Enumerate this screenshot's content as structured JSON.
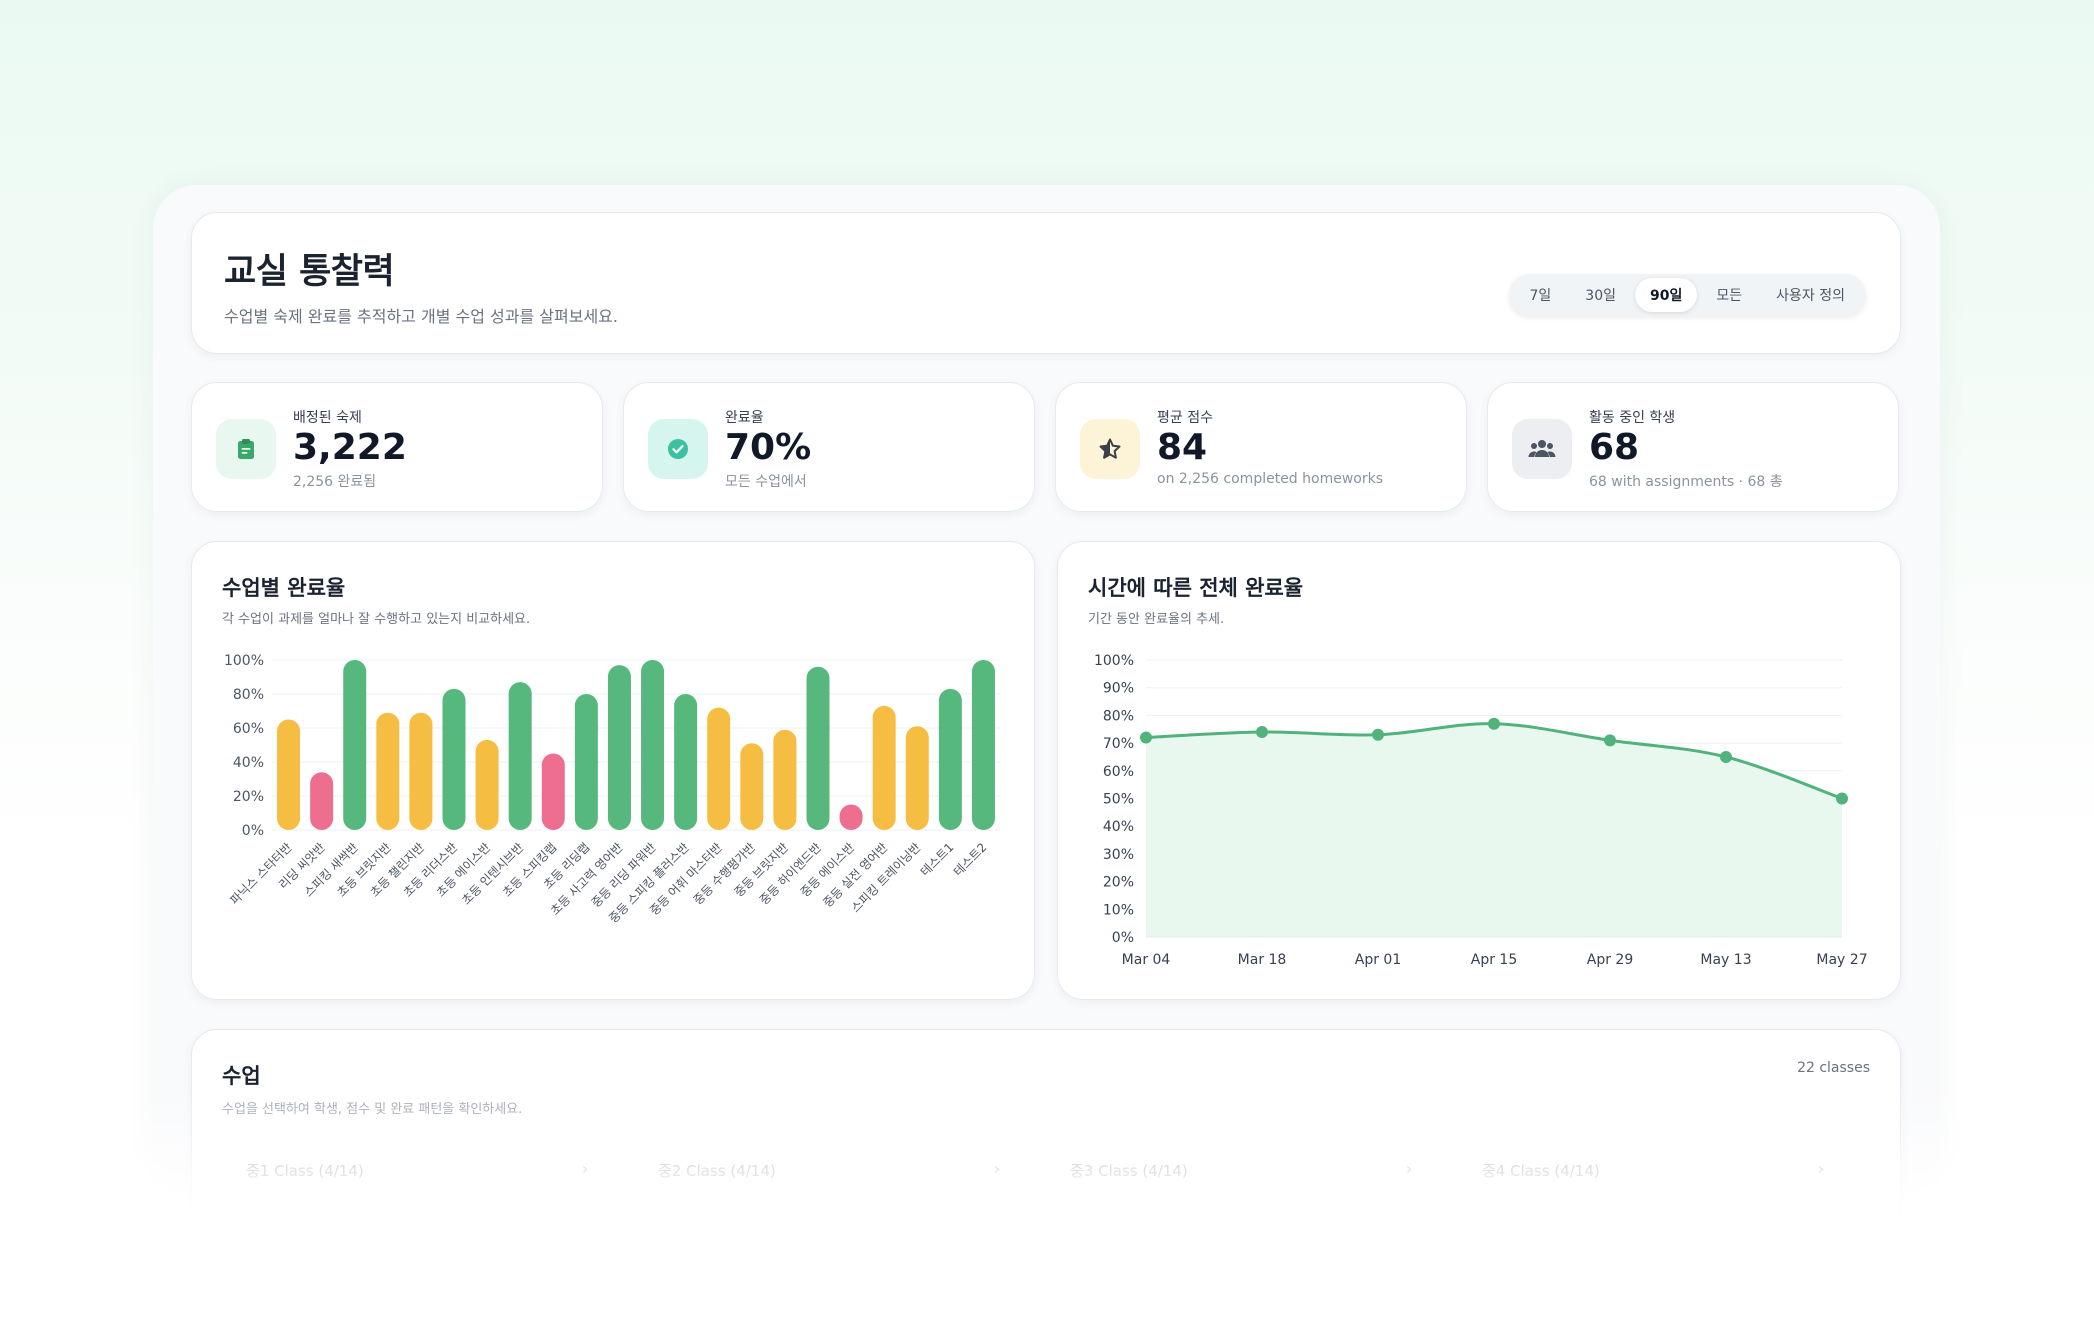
{
  "header": {
    "title": "교실 통찰력",
    "subtitle": "수업별 숙제 완료를 추적하고 개별 수업 성과를 살펴보세요.",
    "ranges": [
      "7일",
      "30일",
      "90일",
      "모든",
      "사용자 정의"
    ],
    "active_range": "90일"
  },
  "stats": [
    {
      "label": "배정된 숙제",
      "value": "3,222",
      "sub": "2,256 완료됨",
      "icon": "clipboard-icon",
      "color": "#e8f7ef"
    },
    {
      "label": "완료율",
      "value": "70%",
      "sub": "모든 수업에서",
      "icon": "check-circle-icon",
      "color": "#d6f5ef"
    },
    {
      "label": "평균 점수",
      "value": "84",
      "sub": "on 2,256 completed homeworks",
      "icon": "star-icon",
      "color": "#fdf3d6"
    },
    {
      "label": "활동 중인 학생",
      "value": "68",
      "sub": "68 with assignments · 68 총",
      "icon": "users-icon",
      "color": "#eceef2"
    }
  ],
  "bar_panel": {
    "title": "수업별 완료율",
    "subtitle": "각 수업이 과제를 얼마나 잘 수행하고 있는지 비교하세요."
  },
  "line_panel": {
    "title": "시간에 따른 전체 완료율",
    "subtitle": "기간 동안 완료율의 추세."
  },
  "classes": {
    "title": "수업",
    "subtitle": "수업을 선택하여 학생, 점수 및 완료 패턴을 확인하세요.",
    "count": "22 classes",
    "items": [
      "중1 Class (4/14)",
      "중2 Class (4/14)",
      "중3 Class (4/14)",
      "중4 Class (4/14)"
    ]
  },
  "colors": {
    "green": "#57b87d",
    "yellow": "#f5bd41",
    "pink": "#ee6e8f",
    "line": "#52b27b",
    "area": "#e8f8ef"
  },
  "chart_data": [
    {
      "type": "bar",
      "categories": [
        "파닉스 스타터반",
        "리딩 씨앗반",
        "스피킹 새싹반",
        "초등 브릿지반",
        "초등 챌린지반",
        "초등 리더스반",
        "초등 에이스반",
        "초등 인텐시브반",
        "초등 스피킹랩",
        "초등 리딩랩",
        "초등 사고력 영어반",
        "중등 리딩 파워반",
        "중등 스피킹 플러스반",
        "중등 어휘 마스터반",
        "중등 수행평가반",
        "중등 브릿지반",
        "중등 하이엔드반",
        "중등 에이스반",
        "중등 실전 영어반",
        "스피킹 트레이닝반",
        "테스트1",
        "테스트2"
      ],
      "values": [
        65,
        34,
        100,
        69,
        69,
        83,
        53,
        87,
        45,
        80,
        97,
        100,
        80,
        72,
        51,
        59,
        96,
        15,
        73,
        61,
        83,
        100
      ],
      "yticks": [
        "0%",
        "20%",
        "40%",
        "60%",
        "80%",
        "100%"
      ],
      "ylim": [
        0,
        100
      ]
    },
    {
      "type": "area",
      "x": [
        "Mar 04",
        "Mar 18",
        "Apr 01",
        "Apr 15",
        "Apr 29",
        "May 13",
        "May 27"
      ],
      "values": [
        72,
        74,
        73,
        77,
        71,
        65,
        50
      ],
      "yticks": [
        "0%",
        "10%",
        "20%",
        "30%",
        "40%",
        "50%",
        "60%",
        "70%",
        "80%",
        "90%",
        "100%"
      ],
      "ylim": [
        0,
        100
      ]
    }
  ]
}
